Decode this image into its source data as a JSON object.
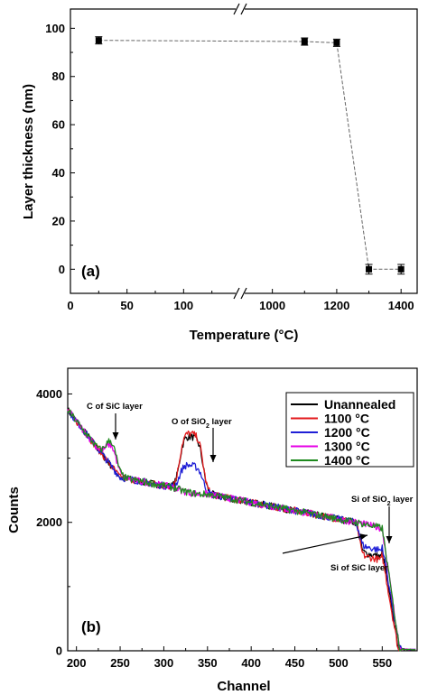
{
  "chart_data": [
    {
      "type": "scatter",
      "panel_label": "(a)",
      "xlabel": "Temperature (°C)",
      "ylabel": "Layer thickness (nm)",
      "broken_x_axis": true,
      "x_tick_labels": [
        "0",
        "50",
        "100",
        "1000",
        "1200",
        "1400"
      ],
      "ylim": [
        -10,
        108
      ],
      "y_ticks": [
        0,
        20,
        40,
        60,
        80,
        100
      ],
      "series": [
        {
          "marker": "filled-square",
          "line": "dashed",
          "points": [
            {
              "x": 25,
              "y": 95,
              "err": 1.5
            },
            {
              "x": 1100,
              "y": 94.5,
              "err": 1.5
            },
            {
              "x": 1200,
              "y": 94,
              "err": 1.5
            },
            {
              "x": 1300,
              "y": 0,
              "err": 2
            },
            {
              "x": 1400,
              "y": 0,
              "err": 2
            }
          ]
        }
      ]
    },
    {
      "type": "line",
      "panel_label": "(b)",
      "xlabel": "Channel",
      "ylabel": "Counts",
      "xlim": [
        190,
        590
      ],
      "ylim": [
        0,
        4400
      ],
      "x_ticks": [
        200,
        250,
        300,
        350,
        400,
        450,
        500,
        550
      ],
      "y_ticks": [
        0,
        2000,
        4000
      ],
      "legend_position": "top-right",
      "annotations": [
        {
          "text": "C of  SiC layer"
        },
        {
          "text": "O of  SiO",
          "sub": "2",
          "tail": " layer"
        },
        {
          "text": "Si of  SiO",
          "sub": "2",
          "tail": " layer"
        },
        {
          "text": "Si of  SiC layer"
        }
      ],
      "series": [
        {
          "name": "Unannealed",
          "color": "#000000",
          "o_peak": 3400,
          "si_drop": 1500,
          "c_bump": 0
        },
        {
          "name": "1100 °C",
          "color": "#e31a1c",
          "o_peak": 3450,
          "si_drop": 1450,
          "c_bump": 0
        },
        {
          "name": "1200 °C",
          "color": "#1f1fd6",
          "o_peak": 2950,
          "si_drop": 1600,
          "c_bump": 0
        },
        {
          "name": "1300 °C",
          "color": "#e600e6",
          "o_peak": 2520,
          "si_drop": 1950,
          "c_bump": 320
        },
        {
          "name": "1400 °C",
          "color": "#1e8a1e",
          "o_peak": 2520,
          "si_drop": 1950,
          "c_bump": 380
        }
      ]
    }
  ]
}
